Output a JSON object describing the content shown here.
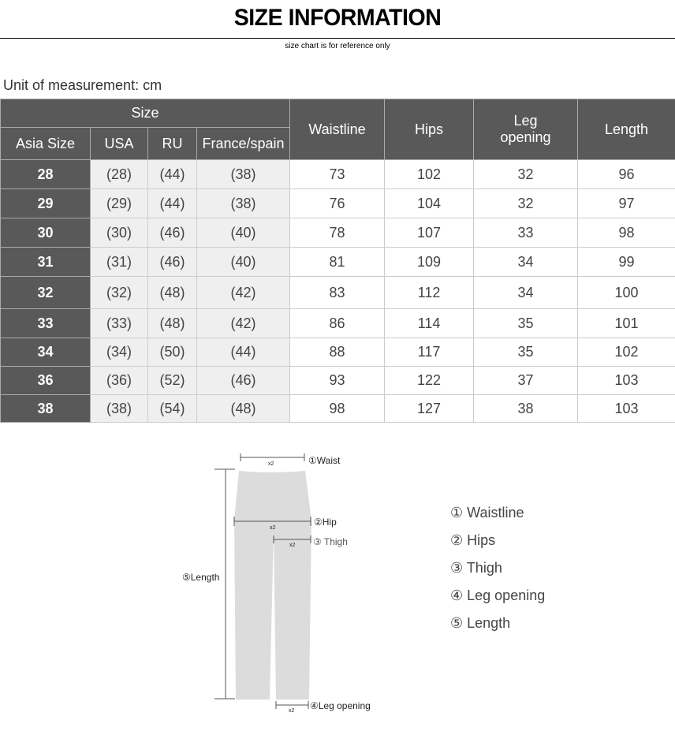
{
  "header": {
    "title": "SIZE INFORMATION",
    "subtitle": "size chart is for reference only"
  },
  "unit_label": "Unit of measurement: cm",
  "table": {
    "group_header": "Size",
    "columns": [
      "Asia Size",
      "USA",
      "RU",
      "France/spain",
      "Waistline",
      "Hips",
      "Leg opening",
      "Length"
    ],
    "rows": [
      [
        "28",
        "(28)",
        "(44)",
        "(38)",
        "73",
        "102",
        "32",
        "96"
      ],
      [
        "29",
        "(29)",
        "(44)",
        "(38)",
        "76",
        "104",
        "32",
        "97"
      ],
      [
        "30",
        "(30)",
        "(46)",
        "(40)",
        "78",
        "107",
        "33",
        "98"
      ],
      [
        "31",
        "(31)",
        "(46)",
        "(40)",
        "81",
        "109",
        "34",
        "99"
      ],
      [
        "32",
        "(32)",
        "(48)",
        "(42)",
        "83",
        "112",
        "34",
        "100"
      ],
      [
        "33",
        "(33)",
        "(48)",
        "(42)",
        "86",
        "114",
        "35",
        "101"
      ],
      [
        "34",
        "(34)",
        "(50)",
        "(44)",
        "88",
        "117",
        "35",
        "102"
      ],
      [
        "36",
        "(36)",
        "(52)",
        "(46)",
        "93",
        "122",
        "37",
        "103"
      ],
      [
        "38",
        "(38)",
        "(54)",
        "(48)",
        "98",
        "127",
        "38",
        "103"
      ]
    ]
  },
  "diagram": {
    "multiplier": "x2",
    "waist": "①Waist",
    "hip": "②Hip",
    "thigh": "③ Thigh",
    "leg_opening": "④Leg opening",
    "length": "⑤Length"
  },
  "legend": [
    "① Waistline",
    "② Hips",
    "③ Thigh",
    "④ Leg opening",
    "⑤ Length"
  ],
  "colors": {
    "header_bg": "#595959",
    "alt_bg": "#efefef",
    "pants": "#dcdcdc"
  }
}
